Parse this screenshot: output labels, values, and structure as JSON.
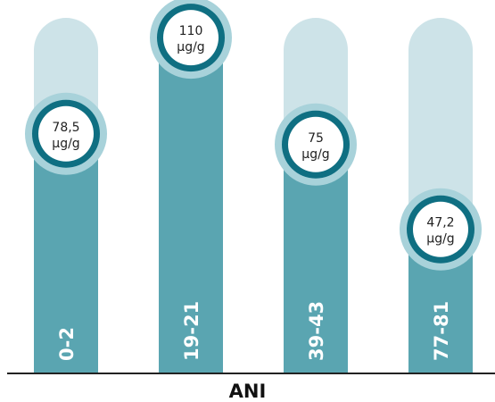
{
  "chart_data": {
    "type": "bar",
    "categories": [
      "0-2",
      "19-21",
      "39-43",
      "77-81"
    ],
    "values": [
      78.5,
      110,
      75,
      47.2
    ],
    "value_labels": [
      "78,5",
      "110",
      "75",
      "47,2"
    ],
    "unit": "µg/g",
    "xlabel": "ANI",
    "ylabel": "",
    "ylim": [
      0,
      120
    ]
  },
  "colors": {
    "bar": "#5aa5b1",
    "track": "#cde3e8",
    "ring": "#0f6f82",
    "halo": "#a8d2da",
    "label_text": "#ffffff",
    "bubble_text": "#222222",
    "axis": "#222222"
  }
}
